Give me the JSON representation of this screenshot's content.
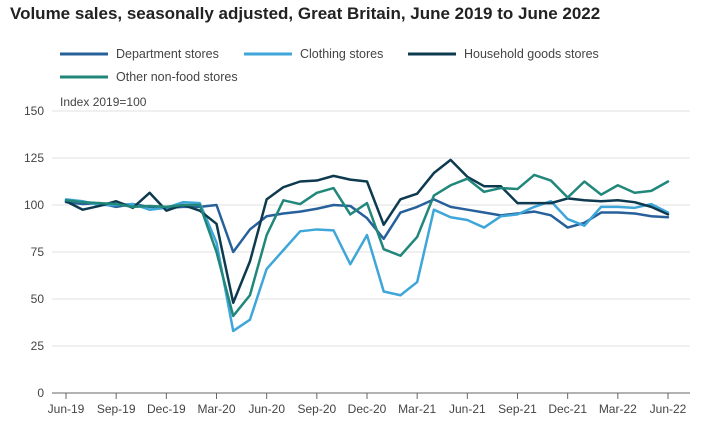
{
  "chart_data": {
    "type": "line",
    "title": "Volume sales, seasonally adjusted, Great Britain, June 2019 to June 2022",
    "ylabel": "Index 2019=100",
    "xlabel": "",
    "ylim": [
      0,
      150
    ],
    "yticks": [
      0,
      25,
      50,
      75,
      100,
      125,
      150
    ],
    "x": [
      "Jun-19",
      "Jul-19",
      "Aug-19",
      "Sep-19",
      "Oct-19",
      "Nov-19",
      "Dec-19",
      "Jan-20",
      "Feb-20",
      "Mar-20",
      "Apr-20",
      "May-20",
      "Jun-20",
      "Jul-20",
      "Aug-20",
      "Sep-20",
      "Oct-20",
      "Nov-20",
      "Dec-20",
      "Jan-21",
      "Feb-21",
      "Mar-21",
      "Apr-21",
      "May-21",
      "Jun-21",
      "Jul-21",
      "Aug-21",
      "Sep-21",
      "Oct-21",
      "Nov-21",
      "Dec-21",
      "Jan-22",
      "Feb-22",
      "Mar-22",
      "Apr-22",
      "May-22",
      "Jun-22"
    ],
    "xtick_labels": [
      "Jun-19",
      "Sep-19",
      "Dec-19",
      "Mar-20",
      "Jun-20",
      "Sep-20",
      "Dec-20",
      "Mar-21",
      "Jun-21",
      "Sep-21",
      "Dec-21",
      "Mar-22",
      "Jun-22"
    ],
    "grid": true,
    "legend_position": "top",
    "series": [
      {
        "name": "Department stores",
        "color": "#27609b",
        "values": [
          101.5,
          100.5,
          101,
          99,
          100.5,
          99,
          98.5,
          99,
          99,
          100,
          75,
          87,
          94,
          95.5,
          96.5,
          98,
          100,
          99.5,
          93,
          82,
          96,
          99,
          103,
          99,
          97.5,
          96,
          94.5,
          95.5,
          96.5,
          94.5,
          88,
          90.5,
          96,
          96,
          95.5,
          94,
          93.5
        ]
      },
      {
        "name": "Clothing stores",
        "color": "#3ea6d8",
        "values": [
          103,
          102,
          100,
          100,
          100.5,
          97.5,
          98.5,
          101.5,
          101,
          80,
          33,
          39,
          66,
          76,
          86,
          87,
          86.5,
          68.5,
          84,
          54,
          52,
          59,
          97.5,
          93.5,
          92,
          88,
          94,
          95,
          99,
          102,
          92.5,
          89,
          99,
          99,
          98.5,
          100.5,
          96
        ]
      },
      {
        "name": "Household goods stores",
        "color": "#0e3a4f",
        "values": [
          102,
          97.5,
          99.5,
          102,
          98.5,
          106.5,
          97,
          100,
          97,
          90,
          48,
          70,
          103,
          109.5,
          112.5,
          113,
          115.5,
          113.5,
          112.5,
          89.5,
          103,
          106,
          117,
          124,
          115,
          110,
          110,
          101,
          101,
          101,
          103.5,
          102.5,
          102,
          102.5,
          101.5,
          99,
          95
        ]
      },
      {
        "name": "Other non-food stores",
        "color": "#21877a",
        "values": [
          102.5,
          101.5,
          101,
          100.5,
          99,
          99.5,
          99,
          100,
          100,
          75,
          41,
          52,
          84,
          102.5,
          100.5,
          106.5,
          109,
          95,
          101,
          76.5,
          73,
          83,
          105,
          110.5,
          114,
          107,
          109,
          108.5,
          116,
          113,
          104,
          112.5,
          105.5,
          110.5,
          106.5,
          107.5,
          112.5
        ]
      }
    ]
  }
}
